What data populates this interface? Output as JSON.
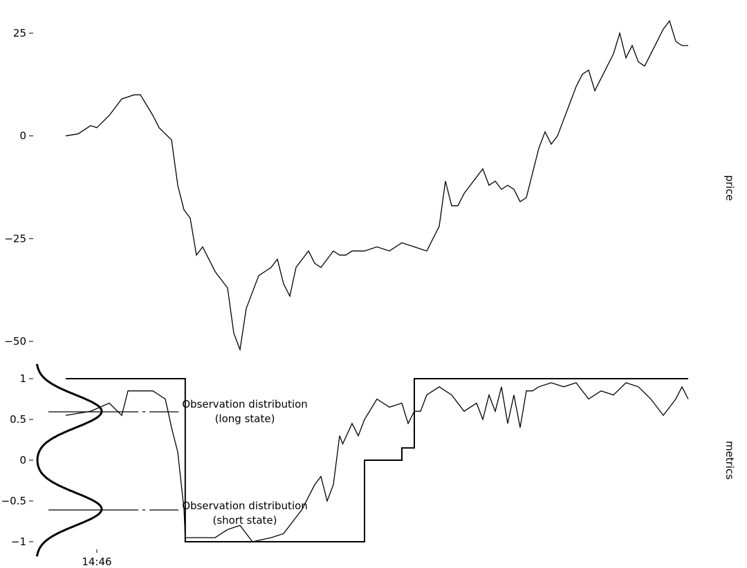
{
  "chart_data": [
    {
      "type": "line",
      "ylabel": "price",
      "ylim": [
        -52,
        28
      ],
      "yticks": [
        {
          "value": 25,
          "label": "25"
        },
        {
          "value": 0,
          "label": "0"
        },
        {
          "value": -25,
          "label": "−25"
        },
        {
          "value": -50,
          "label": "−50"
        }
      ],
      "grid": false,
      "xlim": [
        0,
        100
      ],
      "series": [
        {
          "x": [
            0,
            2,
            4,
            5,
            7,
            9,
            11,
            12,
            14,
            15,
            17,
            18,
            19,
            20,
            21,
            22,
            23,
            24,
            26,
            27,
            28,
            29,
            30,
            31,
            32,
            33,
            34,
            35,
            36,
            37,
            38,
            39,
            40,
            41,
            42,
            43,
            44,
            45,
            46,
            47,
            48,
            50,
            52,
            54,
            56,
            58,
            60,
            61,
            62,
            63,
            64,
            65,
            66,
            67,
            68,
            69,
            70,
            71,
            72,
            73,
            74,
            75,
            76,
            77,
            78,
            79,
            80,
            81,
            82,
            83,
            84,
            85,
            86,
            87,
            88,
            89,
            90,
            91,
            92,
            93,
            94,
            95,
            96,
            97,
            98,
            99,
            100
          ],
          "y": [
            0,
            0.5,
            2.5,
            2,
            5,
            9,
            10,
            10,
            5,
            2,
            -1,
            -12,
            -18,
            -20,
            -29,
            -27,
            -30,
            -33,
            -37,
            -48,
            -52,
            -42,
            -38,
            -34,
            -33,
            -32,
            -30,
            -36,
            -39,
            -32,
            -30,
            -28,
            -31,
            -32,
            -30,
            -28,
            -29,
            -29,
            -28,
            -28,
            -28,
            -27,
            -28,
            -26,
            -27,
            -28,
            -22,
            -11,
            -17,
            -17,
            -14,
            -12,
            -10,
            -8,
            -12,
            -11,
            -13,
            -12,
            -13,
            -16,
            -15,
            -9,
            -3,
            1,
            -2,
            0,
            4,
            8,
            12,
            15,
            16,
            11,
            14,
            17,
            20,
            25,
            19,
            22,
            18,
            17,
            20,
            23,
            26,
            28,
            23,
            22,
            22
          ]
        }
      ]
    },
    {
      "type": "line",
      "ylabel": "metrics",
      "ylim": [
        -1.15,
        1.15
      ],
      "yticks": [
        {
          "value": 1,
          "label": "1"
        },
        {
          "value": 0.5,
          "label": "0.5"
        },
        {
          "value": 0,
          "label": "0"
        },
        {
          "value": -0.5,
          "label": "−0.5"
        },
        {
          "value": -1,
          "label": "−1"
        }
      ],
      "grid": false,
      "xlim": [
        0,
        100
      ],
      "xticks": [
        {
          "value": 5,
          "label": "14:46"
        }
      ],
      "series": [
        {
          "x": [
            0,
            4,
            7,
            9,
            10,
            14,
            16,
            17,
            18,
            19,
            19.2,
            21,
            23,
            24,
            26,
            28,
            30,
            33,
            35,
            37,
            38,
            39,
            40,
            41,
            42,
            43,
            44,
            44.5,
            46,
            47,
            48,
            50,
            52,
            54,
            55,
            56,
            57,
            58,
            60,
            62,
            64,
            66,
            67,
            68,
            69,
            70,
            71,
            72,
            73,
            74,
            75,
            76,
            78,
            80,
            82,
            84,
            86,
            88,
            90,
            92,
            94,
            96,
            98,
            99,
            100
          ],
          "y": [
            0.55,
            0.6,
            0.7,
            0.55,
            0.85,
            0.85,
            0.75,
            0.4,
            0.1,
            -0.6,
            -0.95,
            -0.95,
            -0.95,
            -0.95,
            -0.85,
            -0.8,
            -1,
            -0.95,
            -0.9,
            -0.7,
            -0.6,
            -0.45,
            -0.3,
            -0.2,
            -0.5,
            -0.3,
            0.3,
            0.2,
            0.45,
            0.3,
            0.5,
            0.75,
            0.65,
            0.7,
            0.45,
            0.6,
            0.6,
            0.8,
            0.9,
            0.8,
            0.6,
            0.7,
            0.5,
            0.8,
            0.6,
            0.9,
            0.45,
            0.8,
            0.4,
            0.85,
            0.85,
            0.9,
            0.95,
            0.9,
            0.95,
            0.75,
            0.85,
            0.8,
            0.95,
            0.9,
            0.75,
            0.55,
            0.75,
            0.9,
            0.75
          ]
        },
        {
          "x": [
            0,
            19.2,
            19.2,
            48,
            48,
            54,
            54,
            56,
            56,
            100
          ],
          "y": [
            1,
            1,
            -1,
            -1,
            0,
            0,
            0.15,
            0.15,
            1,
            1
          ]
        }
      ],
      "annotations": [
        {
          "text_lines": [
            "Observation distribution",
            "(long state)"
          ],
          "y": 0.6
        },
        {
          "text_lines": [
            "Observation distribution",
            "(short state)"
          ],
          "y": -0.6
        }
      ]
    }
  ]
}
